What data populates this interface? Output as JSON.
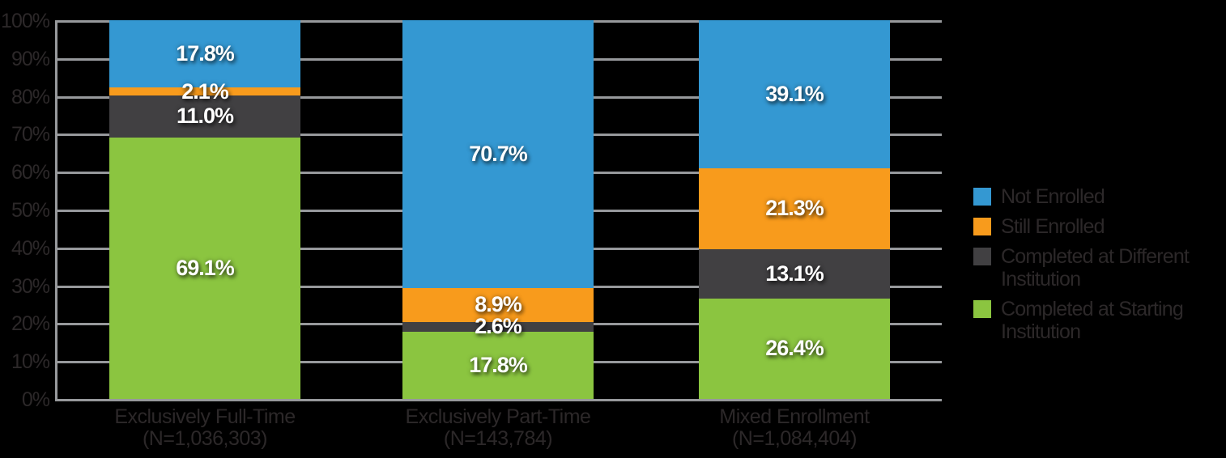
{
  "chart_data": {
    "type": "bar",
    "subtype": "stacked-100-percent",
    "title": "",
    "xlabel": "",
    "ylabel": "",
    "categories": [
      {
        "label": "Exclusively Full-Time",
        "sublabel": "(N=1,036,303)"
      },
      {
        "label": "Exclusively Part-Time",
        "sublabel": "(N=143,784)"
      },
      {
        "label": "Mixed Enrollment",
        "sublabel": "(N=1,084,404)"
      }
    ],
    "series": [
      {
        "name": "Not Enrolled",
        "color": "#3498D2",
        "values": [
          17.8,
          70.7,
          39.1
        ]
      },
      {
        "name": "Still Enrolled",
        "color": "#F89B1C",
        "values": [
          2.1,
          8.9,
          21.3
        ]
      },
      {
        "name": "Completed at Different Institution",
        "color": "#414042",
        "values": [
          11.0,
          2.6,
          13.1
        ]
      },
      {
        "name": "Completed at Starting Institution",
        "color": "#8BC540",
        "values": [
          69.1,
          17.8,
          26.4
        ]
      }
    ],
    "value_label_suffix": "%",
    "ylim": [
      0,
      100
    ],
    "yticks": [
      "100%",
      "90%",
      "80%",
      "70%",
      "60%",
      "50%",
      "40%",
      "30%",
      "20%",
      "10%",
      "0%"
    ],
    "grid": true,
    "legend_position": "right",
    "colors": {
      "background": "#000000",
      "gridline": "#97999C",
      "axis_text": "#2C2829",
      "segment_label": "#FFFFFF"
    }
  }
}
